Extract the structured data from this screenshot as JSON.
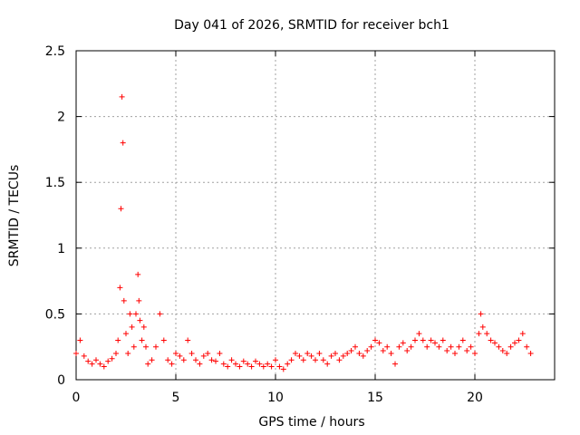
{
  "chart_data": {
    "type": "scatter",
    "title": "Day 041 of 2026, SRMTID for receiver bch1",
    "xlabel": "GPS time / hours",
    "ylabel": "SRMTID / TECUs",
    "xlim": [
      0,
      24
    ],
    "ylim": [
      0,
      2.5
    ],
    "xticks": [
      0,
      5,
      10,
      15,
      20
    ],
    "xtick_labels": [
      "0",
      "5",
      "10",
      "15",
      "20"
    ],
    "yticks": [
      0,
      0.5,
      1,
      1.5,
      2,
      2.5
    ],
    "ytick_labels": [
      "0",
      "0.5",
      "1",
      "1.5",
      "2",
      "2.5"
    ],
    "grid": true,
    "marker": "+",
    "series": [
      {
        "name": "SRMTID",
        "color": "#ff0000",
        "x": [
          0.0,
          0.2,
          0.4,
          0.6,
          0.8,
          1.0,
          1.2,
          1.4,
          1.6,
          1.8,
          2.0,
          2.1,
          2.2,
          2.25,
          2.3,
          2.35,
          2.4,
          2.5,
          2.6,
          2.7,
          2.8,
          2.9,
          3.0,
          3.1,
          3.15,
          3.2,
          3.3,
          3.4,
          3.5,
          3.6,
          3.8,
          4.0,
          4.2,
          4.4,
          4.6,
          4.8,
          5.0,
          5.2,
          5.4,
          5.6,
          5.8,
          6.0,
          6.2,
          6.4,
          6.6,
          6.8,
          7.0,
          7.2,
          7.4,
          7.6,
          7.8,
          8.0,
          8.2,
          8.4,
          8.6,
          8.8,
          9.0,
          9.2,
          9.4,
          9.6,
          9.8,
          10.0,
          10.2,
          10.4,
          10.6,
          10.8,
          11.0,
          11.2,
          11.4,
          11.6,
          11.8,
          12.0,
          12.2,
          12.4,
          12.6,
          12.8,
          13.0,
          13.2,
          13.4,
          13.6,
          13.8,
          14.0,
          14.2,
          14.4,
          14.6,
          14.8,
          15.0,
          15.2,
          15.4,
          15.6,
          15.8,
          16.0,
          16.2,
          16.4,
          16.6,
          16.8,
          17.0,
          17.2,
          17.4,
          17.6,
          17.8,
          18.0,
          18.2,
          18.4,
          18.6,
          18.8,
          19.0,
          19.2,
          19.4,
          19.6,
          19.8,
          20.0,
          20.2,
          20.3,
          20.4,
          20.6,
          20.8,
          21.0,
          21.2,
          21.4,
          21.6,
          21.8,
          22.0,
          22.2,
          22.4,
          22.6,
          22.8
        ],
        "y": [
          0.2,
          0.3,
          0.18,
          0.14,
          0.12,
          0.15,
          0.12,
          0.1,
          0.14,
          0.16,
          0.2,
          0.3,
          0.7,
          1.3,
          2.15,
          1.8,
          0.6,
          0.35,
          0.2,
          0.5,
          0.4,
          0.25,
          0.5,
          0.8,
          0.6,
          0.45,
          0.3,
          0.4,
          0.25,
          0.12,
          0.15,
          0.25,
          0.5,
          0.3,
          0.15,
          0.12,
          0.2,
          0.18,
          0.15,
          0.3,
          0.2,
          0.15,
          0.12,
          0.18,
          0.2,
          0.15,
          0.14,
          0.2,
          0.12,
          0.1,
          0.15,
          0.12,
          0.1,
          0.14,
          0.12,
          0.1,
          0.14,
          0.12,
          0.1,
          0.12,
          0.1,
          0.15,
          0.1,
          0.08,
          0.12,
          0.15,
          0.2,
          0.18,
          0.15,
          0.2,
          0.18,
          0.15,
          0.2,
          0.15,
          0.12,
          0.18,
          0.2,
          0.15,
          0.18,
          0.2,
          0.22,
          0.25,
          0.2,
          0.18,
          0.22,
          0.25,
          0.3,
          0.28,
          0.22,
          0.25,
          0.2,
          0.12,
          0.25,
          0.28,
          0.22,
          0.25,
          0.3,
          0.35,
          0.3,
          0.25,
          0.3,
          0.28,
          0.25,
          0.3,
          0.22,
          0.25,
          0.2,
          0.25,
          0.3,
          0.22,
          0.25,
          0.2,
          0.35,
          0.5,
          0.4,
          0.35,
          0.3,
          0.28,
          0.25,
          0.22,
          0.2,
          0.25,
          0.28,
          0.3,
          0.35,
          0.25,
          0.2
        ]
      }
    ]
  }
}
